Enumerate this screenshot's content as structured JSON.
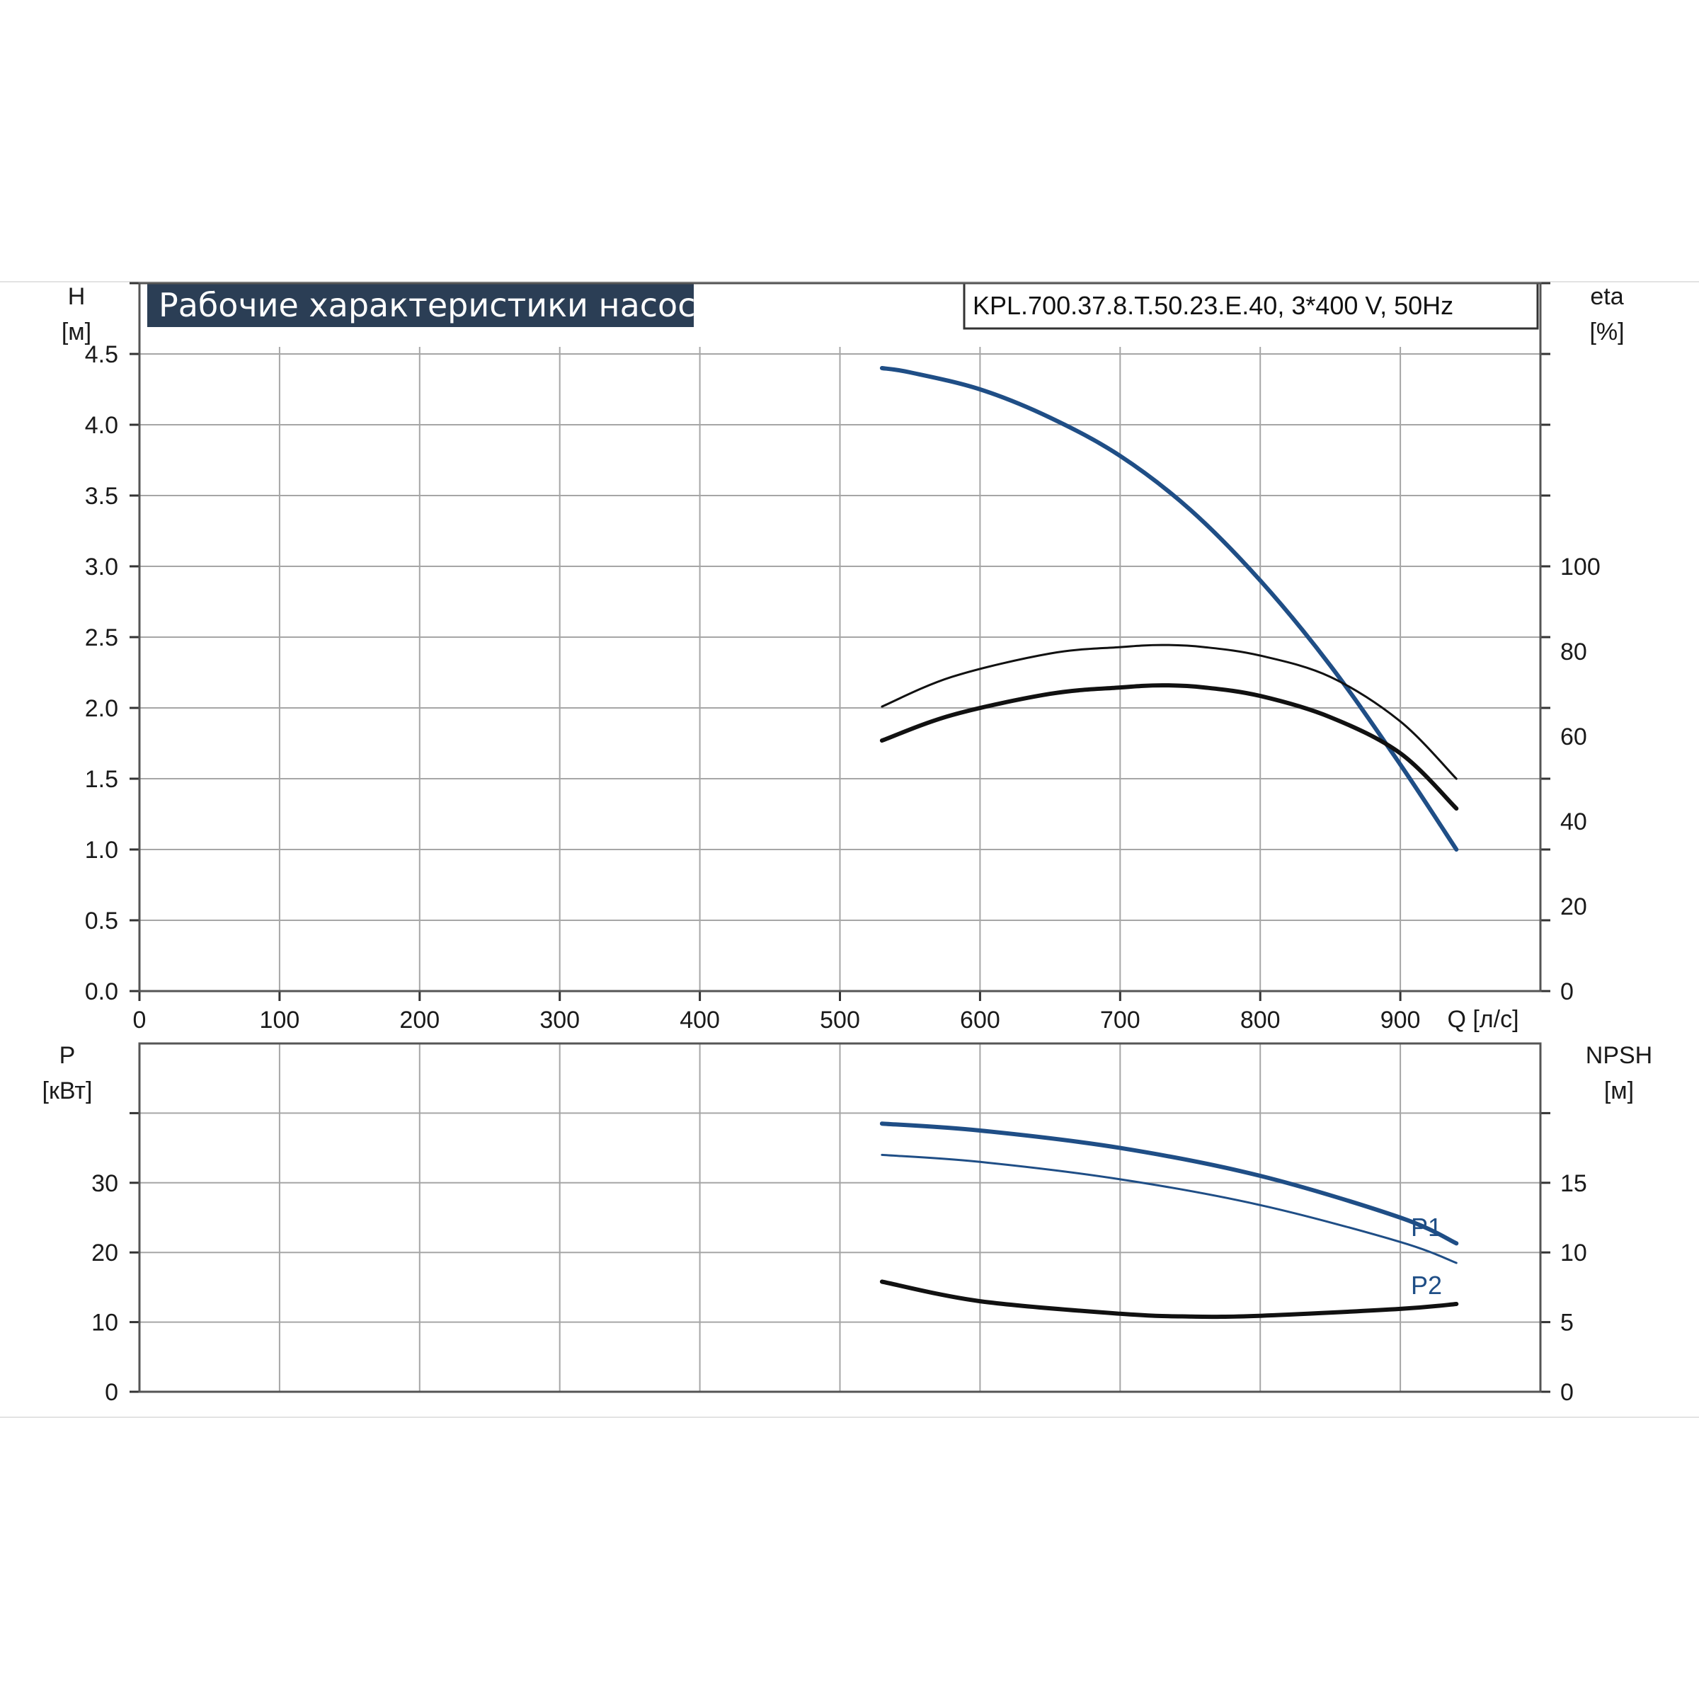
{
  "title": "Рабочие характеристики насоса",
  "model": "KPL.700.37.8.T.50.23.E.40, 3*400 V, 50Hz",
  "colors": {
    "blue": "#1f4e86",
    "black": "#111111",
    "grid": "#a6a6a6",
    "title_bg": "#2b3e55"
  },
  "chart_data": [
    {
      "type": "line",
      "panel": "upper",
      "x_axis": {
        "label": "Q [л/с]",
        "range": [
          0,
          1000
        ],
        "ticks": [
          0,
          100,
          200,
          300,
          400,
          500,
          600,
          700,
          800,
          900
        ]
      },
      "y_axis_left": {
        "label_name": "H",
        "label_unit": "[м]",
        "range": [
          0,
          5
        ],
        "ticks": [
          "0.0",
          "0.5",
          "1.0",
          "1.5",
          "2.0",
          "2.5",
          "3.0",
          "3.5",
          "4.0",
          "4.5"
        ]
      },
      "y_axis_right": {
        "label_name": "eta",
        "label_unit": "[%]",
        "range": [
          0,
          166.7
        ],
        "ticks": [
          "0",
          "20",
          "40",
          "60",
          "80",
          "100"
        ]
      },
      "grid": true,
      "series": [
        {
          "axis": "left",
          "color": "#1f4e86",
          "width": 6,
          "points": [
            [
              530,
              4.4
            ],
            [
              550,
              4.37
            ],
            [
              600,
              4.25
            ],
            [
              650,
              4.05
            ],
            [
              700,
              3.78
            ],
            [
              750,
              3.4
            ],
            [
              800,
              2.9
            ],
            [
              850,
              2.3
            ],
            [
              900,
              1.6
            ],
            [
              940,
              1.0
            ]
          ]
        },
        {
          "axis": "right",
          "color": "#111111",
          "width": 3,
          "points": [
            [
              530,
              67
            ],
            [
              580,
              74
            ],
            [
              650,
              79.5
            ],
            [
              700,
              81
            ],
            [
              730,
              81.5
            ],
            [
              760,
              81
            ],
            [
              800,
              79
            ],
            [
              850,
              74
            ],
            [
              900,
              63.5
            ],
            [
              940,
              50
            ]
          ]
        },
        {
          "axis": "right",
          "color": "#111111",
          "width": 6,
          "points": [
            [
              530,
              59
            ],
            [
              580,
              65
            ],
            [
              650,
              70
            ],
            [
              700,
              71.5
            ],
            [
              730,
              72
            ],
            [
              760,
              71.5
            ],
            [
              800,
              69.5
            ],
            [
              850,
              64.5
            ],
            [
              900,
              56
            ],
            [
              940,
              43
            ]
          ]
        }
      ]
    },
    {
      "type": "line",
      "panel": "lower",
      "x_axis": {
        "range": [
          0,
          1000
        ],
        "ticks": [
          0,
          100,
          200,
          300,
          400,
          500,
          600,
          700,
          800,
          900
        ]
      },
      "y_axis_left": {
        "label_name": "P",
        "label_unit": "[кВт]",
        "range": [
          0,
          50
        ],
        "ticks": [
          "0",
          "10",
          "20",
          "30",
          ""
        ]
      },
      "y_axis_right": {
        "label_name": "NPSH",
        "label_unit": "[м]",
        "range": [
          0,
          25
        ],
        "ticks": [
          "0",
          "5",
          "10",
          "15",
          ""
        ]
      },
      "grid": true,
      "series": [
        {
          "name": "P1",
          "axis": "left",
          "color": "#1f4e86",
          "width": 6,
          "points": [
            [
              530,
              38.5
            ],
            [
              600,
              37.5
            ],
            [
              700,
              35
            ],
            [
              800,
              31
            ],
            [
              900,
              25
            ],
            [
              940,
              21.3
            ]
          ]
        },
        {
          "name": "P2",
          "axis": "left",
          "color": "#1f4e86",
          "width": 3,
          "points": [
            [
              530,
              34
            ],
            [
              600,
              33
            ],
            [
              700,
              30.5
            ],
            [
              800,
              26.8
            ],
            [
              900,
              21.5
            ],
            [
              940,
              18.5
            ]
          ]
        },
        {
          "axis": "right",
          "color": "#111111",
          "width": 6,
          "points": [
            [
              530,
              7.9
            ],
            [
              600,
              6.5
            ],
            [
              700,
              5.6
            ],
            [
              750,
              5.4
            ],
            [
              800,
              5.45
            ],
            [
              900,
              5.95
            ],
            [
              940,
              6.3
            ]
          ]
        }
      ]
    }
  ]
}
